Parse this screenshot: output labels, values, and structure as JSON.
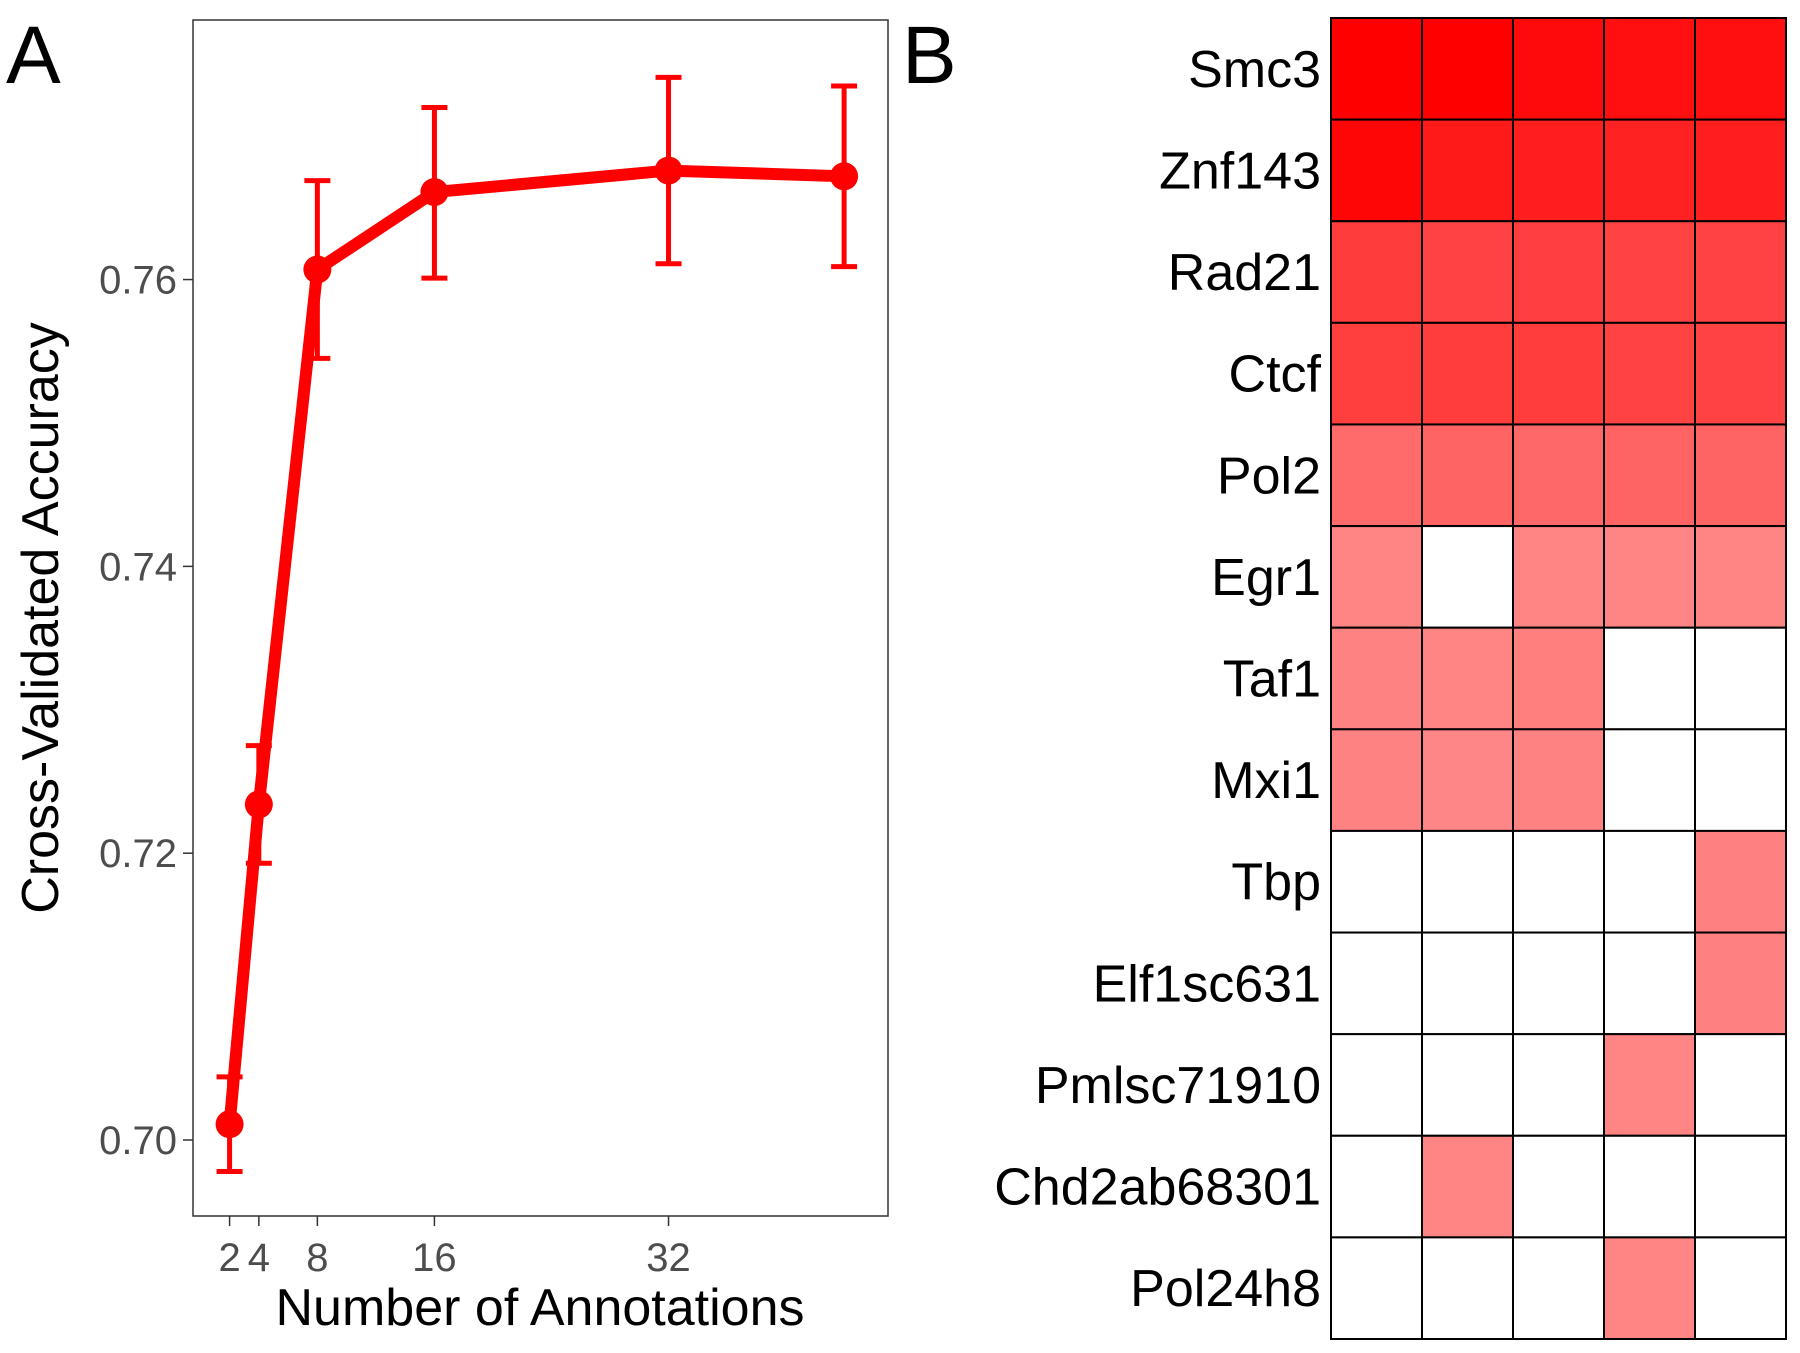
{
  "panels": {
    "a_letter": "A",
    "b_letter": "B"
  },
  "colors": {
    "line": "#ff0000",
    "frame": "#333333",
    "cell_border": "#000000"
  },
  "chart_data": [
    {
      "type": "line",
      "panel": "A",
      "xlabel": "Number of Annotations",
      "ylabel": "Cross-Validated Accuracy",
      "x_ticks": [
        2,
        4,
        8,
        16,
        32
      ],
      "x_tick_labels": [
        "2",
        "4",
        "8",
        "16",
        "32"
      ],
      "y_ticks": [
        0.7,
        0.72,
        0.74,
        0.76
      ],
      "y_tick_labels": [
        "0.70",
        "0.72",
        "0.74",
        "0.76"
      ],
      "xlim": [
        -0.5,
        47
      ],
      "ylim": [
        0.6947,
        0.7781
      ],
      "grid": false,
      "x": [
        2,
        4,
        8,
        16,
        32,
        44
      ],
      "y": [
        0.7011,
        0.7234,
        0.7607,
        0.7661,
        0.7676,
        0.7672
      ],
      "y_lower": [
        0.6978,
        0.7193,
        0.7545,
        0.7601,
        0.7611,
        0.7609
      ],
      "y_upper": [
        0.7044,
        0.7275,
        0.7669,
        0.772,
        0.7741,
        0.7735
      ]
    },
    {
      "type": "heatmap",
      "panel": "B",
      "rows": [
        "Smc3",
        "Znf143",
        "Rad21",
        "Ctcf",
        "Pol2",
        "Egr1",
        "Taf1",
        "Mxi1",
        "Tbp",
        "Elf1sc631",
        "Pmlsc71910",
        "Chd2ab68301",
        "Pol24h8"
      ],
      "columns": 5,
      "cell_colors": [
        [
          "#ff0000",
          "#ff0000",
          "#ff0a0a",
          "#ff0f0f",
          "#ff0f0f"
        ],
        [
          "#ff0606",
          "#ff1a1a",
          "#ff1f1f",
          "#ff2222",
          "#ff1f1f"
        ],
        [
          "#ff3c3c",
          "#ff4343",
          "#ff3f3f",
          "#ff4343",
          "#ff4343"
        ],
        [
          "#ff3e3e",
          "#ff3d3d",
          "#ff3d3d",
          "#ff4242",
          "#ff4242"
        ],
        [
          "#ff6a6a",
          "#ff6464",
          "#ff6868",
          "#ff6464",
          "#ff6464"
        ],
        [
          "#ff8484",
          "#ffffff",
          "#ff8484",
          "#ff8484",
          "#ff8484"
        ],
        [
          "#ff8282",
          "#ff8484",
          "#ff7f7f",
          "#ffffff",
          "#ffffff"
        ],
        [
          "#ff8282",
          "#ff8686",
          "#ff8282",
          "#ffffff",
          "#ffffff"
        ],
        [
          "#ffffff",
          "#ffffff",
          "#ffffff",
          "#ffffff",
          "#ff8080"
        ],
        [
          "#ffffff",
          "#ffffff",
          "#ffffff",
          "#ffffff",
          "#ff8080"
        ],
        [
          "#ffffff",
          "#ffffff",
          "#ffffff",
          "#ff8484",
          "#ffffff"
        ],
        [
          "#ffffff",
          "#ff8484",
          "#ffffff",
          "#ffffff",
          "#ffffff"
        ],
        [
          "#ffffff",
          "#ffffff",
          "#ffffff",
          "#ff8484",
          "#ffffff"
        ]
      ]
    }
  ]
}
